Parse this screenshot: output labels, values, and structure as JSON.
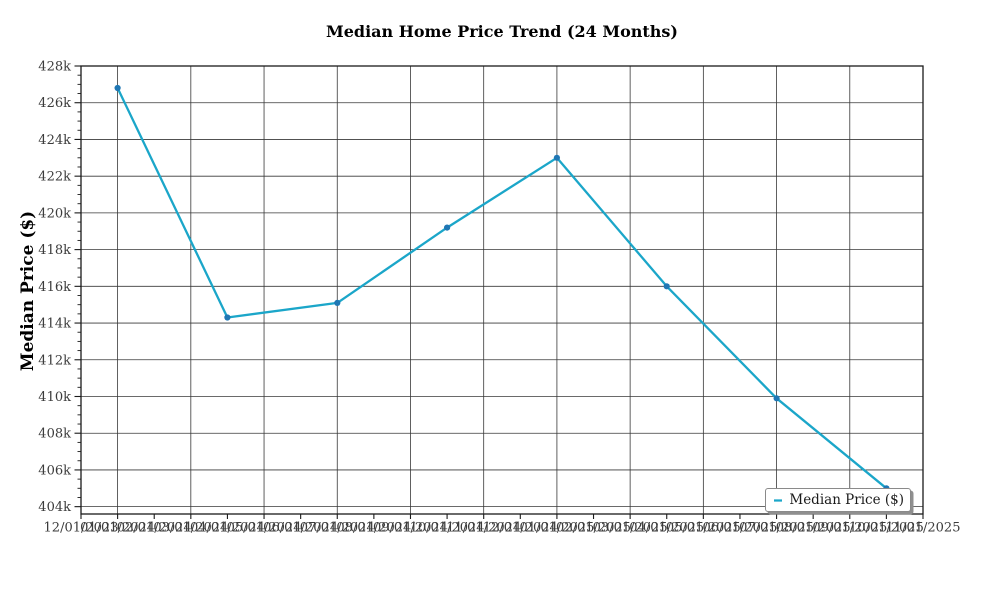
{
  "chart_data": {
    "type": "line",
    "title": "Median Home Price Trend (24 Months)",
    "ylabel": "Median Price ($)",
    "xlabel": "",
    "grid": true,
    "legend_position": "lower right",
    "categories": [
      "12/01/2023",
      "01/01/2024",
      "02/01/2024",
      "03/01/2024",
      "04/01/2024",
      "05/01/2024",
      "06/01/2024",
      "07/01/2024",
      "08/01/2024",
      "09/01/2024",
      "10/01/2024",
      "11/01/2024",
      "12/01/2024",
      "01/01/2025",
      "02/01/2025",
      "03/01/2025",
      "04/01/2025",
      "05/01/2025",
      "06/01/2025",
      "07/01/2025",
      "08/01/2025",
      "09/01/2025",
      "10/01/2025",
      "11/01/2025"
    ],
    "yticks": [
      {
        "v": 428000,
        "label": "428k"
      },
      {
        "v": 426000,
        "label": "426k"
      },
      {
        "v": 424000,
        "label": "424k"
      },
      {
        "v": 422000,
        "label": "422k"
      },
      {
        "v": 420000,
        "label": "420k"
      },
      {
        "v": 418000,
        "label": "418k"
      },
      {
        "v": 416000,
        "label": "416k"
      },
      {
        "v": 414000,
        "label": "414k"
      },
      {
        "v": 412000,
        "label": "412k"
      },
      {
        "v": 410000,
        "label": "410k"
      },
      {
        "v": 408000,
        "label": "408k"
      },
      {
        "v": 406000,
        "label": "406k"
      },
      {
        "v": 404000,
        "label": "404k"
      }
    ],
    "ylim": [
      403600,
      428000
    ],
    "minor_ytick_step": 500,
    "series": [
      {
        "name": "Median Price ($)",
        "color": "#1ba6c9",
        "marker_color": "#1f77b4",
        "points": [
          {
            "x": "01/01/2024",
            "y": 426800
          },
          {
            "x": "04/01/2024",
            "y": 414300
          },
          {
            "x": "07/01/2024",
            "y": 415100
          },
          {
            "x": "10/01/2024",
            "y": 419200
          },
          {
            "x": "01/01/2025",
            "y": 423000
          },
          {
            "x": "04/01/2025",
            "y": 416000
          },
          {
            "x": "07/01/2025",
            "y": 409900
          },
          {
            "x": "10/01/2025",
            "y": 405000
          }
        ]
      }
    ],
    "colors": {
      "gridline": "#383838",
      "spine": "#1a1a1a",
      "tick_label": "#3b3b3b"
    }
  }
}
